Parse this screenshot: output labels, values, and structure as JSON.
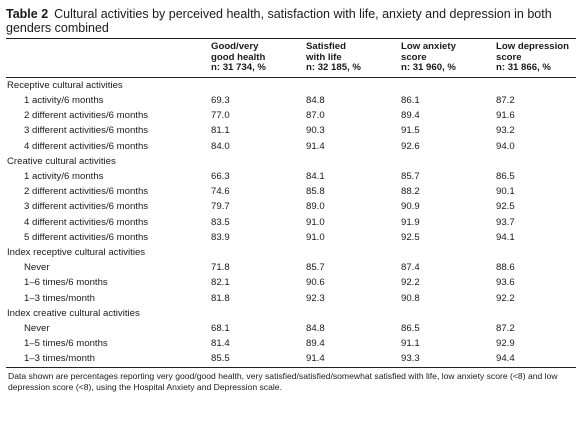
{
  "table_label": "Table 2",
  "title": "Cultural activities by perceived health, satisfaction with life, anxiety and depression in both genders combined",
  "columns": [
    {
      "l1": "",
      "l2": "",
      "l3": ""
    },
    {
      "l1": "Good/very",
      "l2": "good health",
      "l3": "n: 31 734, %"
    },
    {
      "l1": "Satisfied",
      "l2": "with life",
      "l3": "n: 32 185, %"
    },
    {
      "l1": "Low anxiety",
      "l2": "score",
      "l3": "n: 31 960, %"
    },
    {
      "l1": "Low depression",
      "l2": "score",
      "l3": "n: 31 866, %"
    }
  ],
  "rows": [
    {
      "label": "Receptive cultural activities",
      "section": true,
      "v": [
        "",
        "",
        "",
        ""
      ]
    },
    {
      "label": "1 activity/6 months",
      "section": false,
      "v": [
        "69.3",
        "84.8",
        "86.1",
        "87.2"
      ]
    },
    {
      "label": "2 different activities/6 months",
      "section": false,
      "v": [
        "77.0",
        "87.0",
        "89.4",
        "91.6"
      ]
    },
    {
      "label": "3 different activities/6 months",
      "section": false,
      "v": [
        "81.1",
        "90.3",
        "91.5",
        "93.2"
      ]
    },
    {
      "label": "4 different activities/6 months",
      "section": false,
      "v": [
        "84.0",
        "91.4",
        "92.6",
        "94.0"
      ]
    },
    {
      "label": "Creative cultural activities",
      "section": true,
      "v": [
        "",
        "",
        "",
        ""
      ]
    },
    {
      "label": "1 activity/6 months",
      "section": false,
      "v": [
        "66.3",
        "84.1",
        "85.7",
        "86.5"
      ]
    },
    {
      "label": "2 different activities/6 months",
      "section": false,
      "v": [
        "74.6",
        "85.8",
        "88.2",
        "90.1"
      ]
    },
    {
      "label": "3 different activities/6 months",
      "section": false,
      "v": [
        "79.7",
        "89.0",
        "90.9",
        "92.5"
      ]
    },
    {
      "label": "4 different activities/6 months",
      "section": false,
      "v": [
        "83.5",
        "91.0",
        "91.9",
        "93.7"
      ]
    },
    {
      "label": "5 different activities/6 months",
      "section": false,
      "v": [
        "83.9",
        "91.0",
        "92.5",
        "94.1"
      ]
    },
    {
      "label": "Index receptive cultural activities",
      "section": true,
      "v": [
        "",
        "",
        "",
        ""
      ]
    },
    {
      "label": "Never",
      "section": false,
      "v": [
        "71.8",
        "85.7",
        "87.4",
        "88.6"
      ]
    },
    {
      "label": "1–6 times/6 months",
      "section": false,
      "v": [
        "82.1",
        "90.6",
        "92.2",
        "93.6"
      ]
    },
    {
      "label": "1–3 times/month",
      "section": false,
      "v": [
        "81.8",
        "92.3",
        "90.8",
        "92.2"
      ]
    },
    {
      "label": "Index creative cultural activities",
      "section": true,
      "v": [
        "",
        "",
        "",
        ""
      ]
    },
    {
      "label": "Never",
      "section": false,
      "v": [
        "68.1",
        "84.8",
        "86.5",
        "87.2"
      ]
    },
    {
      "label": "1–5 times/6 months",
      "section": false,
      "v": [
        "81.4",
        "89.4",
        "91.1",
        "92.9"
      ]
    },
    {
      "label": "1–3 times/month",
      "section": false,
      "v": [
        "85.5",
        "91.4",
        "93.3",
        "94.4"
      ]
    }
  ],
  "footnote": "Data shown are percentages reporting very good/good health, very satisfied/satisfied/somewhat satisfied with life, low anxiety score (<8) and low depression score (<8), using the Hospital Anxiety and Depression scale."
}
